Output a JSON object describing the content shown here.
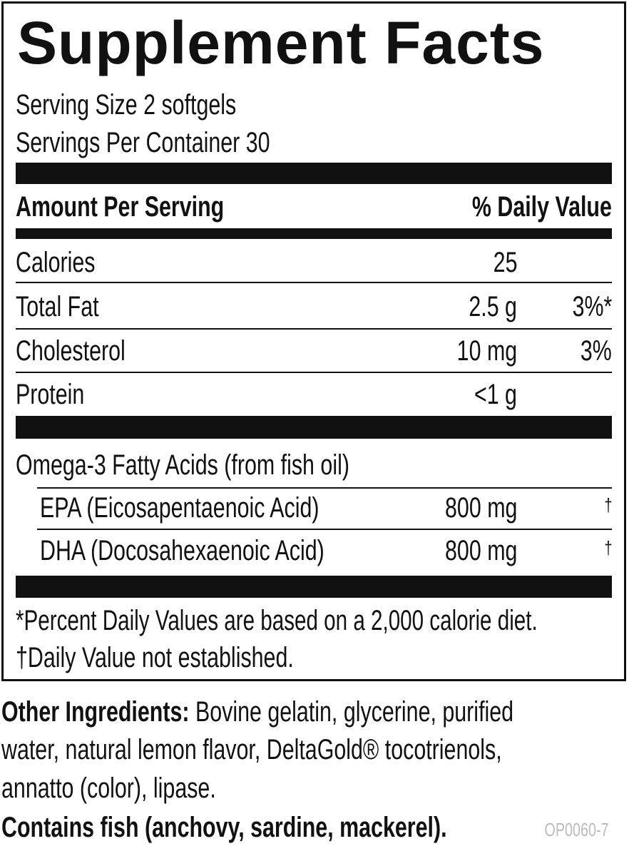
{
  "header": {
    "title": "Supplement Facts"
  },
  "serving": {
    "size": "Serving Size 2 softgels",
    "per_container": "Servings Per Container 30"
  },
  "table": {
    "header": [
      "Amount Per Serving",
      "% Daily Value"
    ],
    "rows": [
      {
        "name": "Calories",
        "amount": "25"
      },
      {
        "name": "Total Fat",
        "amount": "2.5 g",
        "dv": "3%*"
      },
      {
        "name": "Cholesterol",
        "amount": "10 mg",
        "dv": "3%"
      },
      {
        "name": "Protein",
        "amount": "<1 g"
      }
    ]
  },
  "omega": {
    "heading": "Omega-3 Fatty Acids (from fish oil)",
    "rows": [
      {
        "name": "EPA (Eicosapentaenoic Acid)",
        "amount": "800 mg",
        "dv": "†"
      },
      {
        "name": "DHA (Docosahexaenoic Acid)",
        "amount": "800 mg",
        "dv": "†"
      }
    ]
  },
  "footnotes": [
    "*Percent Daily Values are based on a 2,000 calorie diet.",
    "†Daily Value not established."
  ],
  "other_ingredients": {
    "label": "Other Ingredients:",
    "lines": [
      "Bovine gelatin, glycerine, purified",
      "water, natural lemon flavor, DeltaGold® tocotrienols,",
      "annatto (color), lipase."
    ]
  },
  "allergen": "Contains fish (anchovy, sardine, mackerel).",
  "code": "OP0060-7"
}
